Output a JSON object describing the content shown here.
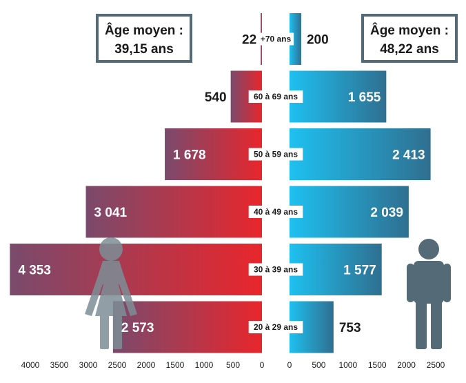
{
  "chart_data": {
    "type": "bar",
    "layout": "population-pyramid",
    "categories": [
      "+70 ans",
      "60 à 69 ans",
      "50 à 59 ans",
      "40 à 49 ans",
      "30 à 39 ans",
      "20 à 29 ans"
    ],
    "series": [
      {
        "side": "left",
        "icon": "woman-icon",
        "color_start": "#7a4a6c",
        "color_end": "#e8262c",
        "values": [
          22,
          540,
          1678,
          3041,
          4353,
          2573
        ],
        "value_labels": [
          "22",
          "540",
          "1 678",
          "3 041",
          "4 353",
          "2 573"
        ]
      },
      {
        "side": "right",
        "icon": "man-icon",
        "color_start": "#1ec0f0",
        "color_end": "#2f6f90",
        "values": [
          200,
          1655,
          2413,
          2039,
          1577,
          753
        ],
        "value_labels": [
          "200",
          "1 655",
          "2 413",
          "2 039",
          "1 577",
          "753"
        ]
      }
    ],
    "left_axis": {
      "range": [
        0,
        4000
      ],
      "ticks": [
        4000,
        3500,
        3000,
        2500,
        2000,
        1500,
        1000,
        500,
        0
      ]
    },
    "right_axis": {
      "range": [
        0,
        2500
      ],
      "ticks": [
        0,
        500,
        1000,
        1500,
        2000,
        2500
      ]
    },
    "annotations": {
      "left_box": {
        "line1": "Âge moyen :",
        "line2": "39,15 ans"
      },
      "right_box": {
        "line1": "Âge moyen :",
        "line2": "48,22 ans"
      }
    }
  }
}
